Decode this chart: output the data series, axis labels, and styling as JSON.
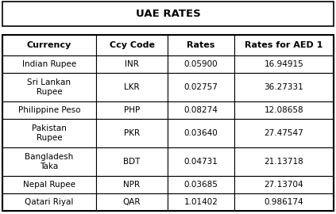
{
  "title": "UAE RATES",
  "headers": [
    "Currency",
    "Ccy Code",
    "Rates",
    "Rates for AED 1"
  ],
  "rows": [
    [
      "Indian Rupee",
      "INR",
      "0.05900",
      "16.94915"
    ],
    [
      "Sri Lankan\nRupee",
      "LKR",
      "0.02757",
      "36.27331"
    ],
    [
      "Philippine Peso",
      "PHP",
      "0.08274",
      "12.08658"
    ],
    [
      "Pakistan\nRupee",
      "PKR",
      "0.03640",
      "27.47547"
    ],
    [
      "Bangladesh\nTaka",
      "BDT",
      "0.04731",
      "21.13718"
    ],
    [
      "Nepal Rupee",
      "NPR",
      "0.03685",
      "27.13704"
    ],
    [
      "Qatari Riyal",
      "QAR",
      "1.01402",
      "0.986174"
    ]
  ],
  "bg_color": "#ffffff",
  "border_color": "#000000",
  "title_font_size": 9.5,
  "header_font_size": 8,
  "cell_font_size": 7.5
}
